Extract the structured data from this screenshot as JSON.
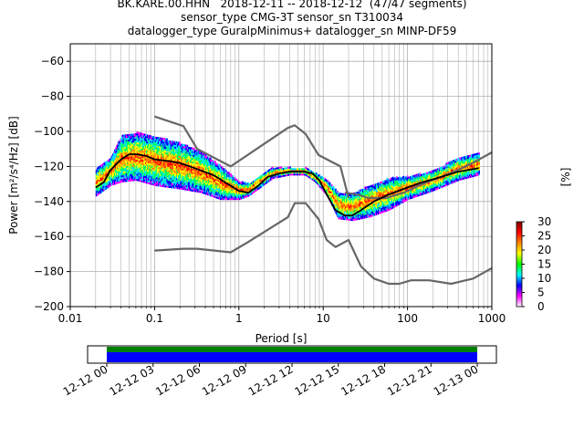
{
  "titles": {
    "line1": "BK.KARE.00.HHN   2018-12-11 -- 2018-12-12  (47/47 segments)",
    "line2": "sensor_type CMG-3T sensor_sn T310034",
    "line3": "datalogger_type GuralpMinimus+ datalogger_sn MINP-DF59"
  },
  "chart_data": [
    {
      "type": "heatmap",
      "subtype": "probabilistic-power-spectral-density",
      "xlabel": "Period [s]",
      "ylabel": "Power [m²/s⁴/Hz] [dB]",
      "x_scale": "log",
      "xlim": [
        0.01,
        1000
      ],
      "ylim": [
        -200,
        -50
      ],
      "x_ticks": [
        0.01,
        0.1,
        1,
        10,
        100,
        1000
      ],
      "x_tick_labels": [
        "0.01",
        "0.1",
        "1",
        "10",
        "100",
        "1000"
      ],
      "y_ticks": [
        -200,
        -180,
        -160,
        -140,
        -120,
        -100,
        -80,
        -60
      ],
      "y_tick_labels": [
        "−200",
        "−180",
        "−160",
        "−140",
        "−120",
        "−100",
        "−80",
        "−60"
      ],
      "grid": true,
      "series": [
        {
          "name": "",
          "color": "#666666",
          "x": [
            0.1,
            0.22,
            0.32,
            0.8,
            3.8,
            4.6,
            6.2,
            8.8,
            16,
            20
          ],
          "y": [
            -91.5,
            -97,
            -110,
            -120,
            -98,
            -96.5,
            -101.5,
            -113.5,
            -120,
            -138
          ]
        },
        {
          "name": "",
          "color": "#666666",
          "x": [
            0.1,
            0.22,
            0.32,
            0.8,
            1.25,
            3.8,
            4.6,
            6.2,
            8.8,
            11,
            14,
            20,
            28,
            40,
            60,
            80,
            110,
            180,
            330,
            600,
            1000
          ],
          "y": [
            -168,
            -167,
            -167,
            -169,
            -163.5,
            -149,
            -141,
            -141,
            -150,
            -162,
            -166,
            -162,
            -177,
            -184,
            -187,
            -187,
            -185,
            -185,
            -187,
            -184,
            -178
          ]
        },
        {
          "name": "",
          "color": "#666666",
          "x": [
            18,
            25,
            35,
            55,
            90,
            150,
            250,
            400,
            650,
            1000
          ],
          "y": [
            -135,
            -136,
            -138,
            -138,
            -135,
            -130,
            -126,
            -122,
            -117,
            -112
          ]
        },
        {
          "name": "",
          "color": "#000000",
          "x": [
            0.02,
            0.025,
            0.03,
            0.04,
            0.05,
            0.06,
            0.08,
            0.1,
            0.15,
            0.2,
            0.3,
            0.5,
            0.8,
            1.0,
            1.3,
            1.7,
            2.2,
            3,
            4,
            5,
            6,
            7.5,
            9,
            11,
            14,
            18,
            22,
            28,
            40,
            60,
            100,
            150,
            250,
            400,
            700
          ],
          "y": [
            -132,
            -129,
            -122,
            -116,
            -113,
            -113,
            -114,
            -116,
            -117,
            -118,
            -121,
            -125,
            -131,
            -134,
            -135,
            -131,
            -126,
            -124,
            -123,
            -123,
            -123,
            -124,
            -128,
            -136,
            -145,
            -148,
            -148,
            -145,
            -140,
            -136,
            -132,
            -129,
            -126,
            -123,
            -121
          ]
        }
      ],
      "density_band": [
        {
          "x": 0.02,
          "low": -137,
          "high": -122
        },
        {
          "x": 0.03,
          "low": -131,
          "high": -115
        },
        {
          "x": 0.04,
          "low": -129,
          "high": -103
        },
        {
          "x": 0.06,
          "low": -128,
          "high": -101
        },
        {
          "x": 0.1,
          "low": -131,
          "high": -103
        },
        {
          "x": 0.2,
          "low": -133,
          "high": -107
        },
        {
          "x": 0.35,
          "low": -135,
          "high": -112
        },
        {
          "x": 0.6,
          "low": -139,
          "high": -120
        },
        {
          "x": 1.0,
          "low": -139,
          "high": -129
        },
        {
          "x": 1.3,
          "low": -137,
          "high": -130
        },
        {
          "x": 1.8,
          "low": -132,
          "high": -125
        },
        {
          "x": 2.5,
          "low": -127,
          "high": -121
        },
        {
          "x": 4,
          "low": -125,
          "high": -121
        },
        {
          "x": 6,
          "low": -125,
          "high": -121
        },
        {
          "x": 8,
          "low": -129,
          "high": -124
        },
        {
          "x": 11,
          "low": -137,
          "high": -128
        },
        {
          "x": 15,
          "low": -150,
          "high": -135
        },
        {
          "x": 22,
          "low": -151,
          "high": -136
        },
        {
          "x": 35,
          "low": -149,
          "high": -131
        },
        {
          "x": 60,
          "low": -145,
          "high": -127
        },
        {
          "x": 100,
          "low": -139,
          "high": -126
        },
        {
          "x": 200,
          "low": -134,
          "high": -123
        },
        {
          "x": 400,
          "low": -128,
          "high": -115
        },
        {
          "x": 700,
          "low": -125,
          "high": -113
        }
      ]
    },
    {
      "type": "colorbar",
      "label": "[%]",
      "range": [
        0,
        30
      ],
      "ticks": [
        0,
        5,
        10,
        15,
        20,
        25,
        30
      ],
      "colormap": [
        "#ffffff",
        "#ff00ff",
        "#0000ff",
        "#00ffff",
        "#00ff00",
        "#ffff00",
        "#ff8800",
        "#ff0000",
        "#800000"
      ]
    },
    {
      "type": "timeline",
      "tick_labels": [
        "12-12 00",
        "12-12 03",
        "12-12 06",
        "12-12 09",
        "12-12 12",
        "12-12 15",
        "12-12 18",
        "12-12 21",
        "12-13 00"
      ],
      "coverage": {
        "start": "12-12 00",
        "end": "12-13 00"
      },
      "colors": {
        "data": "#0000ff",
        "gaps": "#008000"
      }
    }
  ]
}
